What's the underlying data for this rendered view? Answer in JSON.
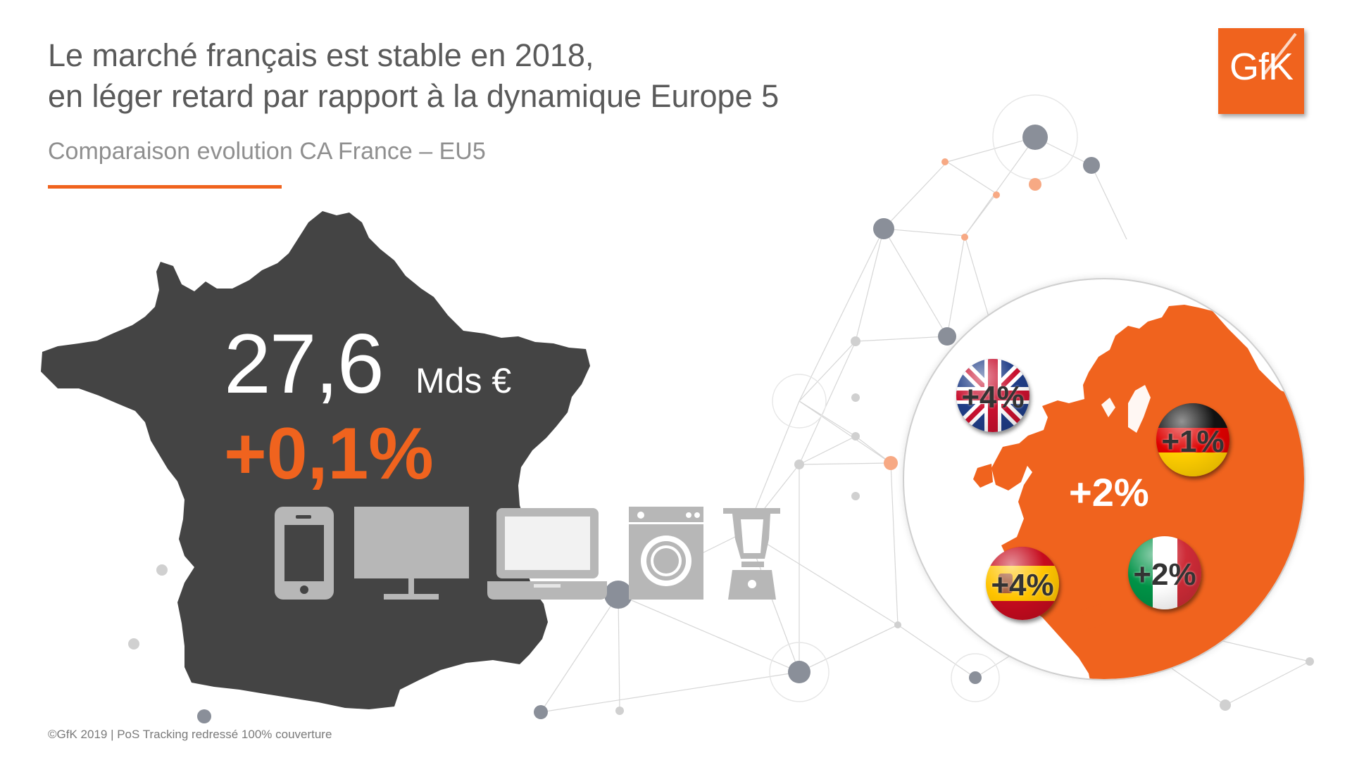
{
  "header": {
    "title_line1": "Le marché français est stable en 2018,",
    "title_line2": "en léger retard par rapport à la dynamique Europe 5",
    "subtitle": "Comparaison evolution CA France – EU5"
  },
  "logo": {
    "text": "GfK"
  },
  "france": {
    "amount": "27,6",
    "unit": "Mds €",
    "growth": "+0,1%",
    "icons": [
      "smartphone-icon",
      "tv-monitor-icon",
      "laptop-icon",
      "washing-machine-icon",
      "blender-icon"
    ]
  },
  "europe": {
    "total_label": "+2%",
    "flags": [
      {
        "country": "uk-flag-icon",
        "label": "+4%"
      },
      {
        "country": "germany-flag-icon",
        "label": "+1%"
      },
      {
        "country": "spain-flag-icon",
        "label": "+4%"
      },
      {
        "country": "italy-flag-icon",
        "label": "+2%"
      }
    ]
  },
  "footer": {
    "text": "©GfK 2019 | PoS Tracking redressé 100% couverture"
  },
  "colors": {
    "accent": "#f0631e",
    "map_dark": "#444444",
    "icon_grey": "#b7b7b7",
    "title_grey": "#5a5a5a"
  }
}
